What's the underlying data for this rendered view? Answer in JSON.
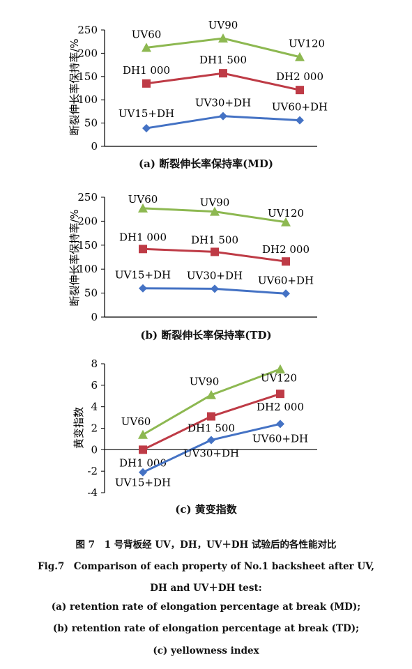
{
  "charts": [
    {
      "panel": "a",
      "caption": "(a) 断裂伸长率保持率(MD)",
      "ylabel": "断裂伸长率保持率/%",
      "ylim": [
        0,
        250
      ],
      "yticks": [
        0,
        50,
        100,
        150,
        200,
        250
      ],
      "x": [
        1,
        2,
        3
      ],
      "series": [
        {
          "labels": [
            "UV60",
            "UV90",
            "UV120"
          ],
          "values": [
            212,
            232,
            192
          ],
          "color": "#8db851",
          "marker": "triangle"
        },
        {
          "labels": [
            "DH1 000",
            "DH1 500",
            "DH2 000"
          ],
          "values": [
            135,
            157,
            121
          ],
          "color": "#be3b46",
          "marker": "square"
        },
        {
          "labels": [
            "UV15+DH",
            "UV30+DH",
            "UV60+DH"
          ],
          "values": [
            39,
            65,
            56
          ],
          "color": "#4472c4",
          "marker": "diamond"
        }
      ]
    },
    {
      "panel": "b",
      "caption": "(b) 断裂伸长率保持率(TD)",
      "ylabel": "断裂伸长率保持率/%",
      "ylim": [
        0,
        250
      ],
      "yticks": [
        0,
        50,
        100,
        150,
        200,
        250
      ],
      "x": [
        1,
        2,
        3
      ],
      "series": [
        {
          "labels": [
            "UV60",
            "UV90",
            "UV120"
          ],
          "values": [
            227,
            220,
            198
          ],
          "color": "#8db851",
          "marker": "triangle"
        },
        {
          "labels": [
            "DH1 000",
            "DH1 500",
            "DH2 000"
          ],
          "values": [
            142,
            136,
            116
          ],
          "color": "#be3b46",
          "marker": "square"
        },
        {
          "labels": [
            "UV15+DH",
            "UV30+DH",
            "UV60+DH"
          ],
          "values": [
            60,
            59,
            49
          ],
          "color": "#4472c4",
          "marker": "diamond"
        }
      ]
    },
    {
      "panel": "c",
      "caption": "(c) 黄变指数",
      "ylabel": "黄变指数",
      "ylim": [
        -4,
        8
      ],
      "yticks": [
        -4,
        -2,
        0,
        2,
        4,
        6,
        8
      ],
      "x": [
        1,
        2,
        3
      ],
      "series": [
        {
          "labels": [
            "UV60",
            "UV90",
            "UV120"
          ],
          "values": [
            1.4,
            5.1,
            7.5
          ],
          "color": "#8db851",
          "marker": "triangle"
        },
        {
          "labels": [
            "DH1 000",
            "DH1 500",
            "DH2 000"
          ],
          "values": [
            0.0,
            3.1,
            5.2
          ],
          "color": "#be3b46",
          "marker": "square"
        },
        {
          "labels": [
            "UV15+DH",
            "UV30+DH",
            "UV60+DH"
          ],
          "values": [
            -2.1,
            0.9,
            2.4
          ],
          "color": "#4472c4",
          "marker": "diamond"
        }
      ]
    }
  ],
  "figure_caption": {
    "cn": "图 7　1 号背板经 UV，DH，UV＋DH 试验后的各性能对比",
    "en1": "Fig.7　Comparison of each property of No.1 backsheet after UV,",
    "en2": "DH and UV＋DH test:",
    "en3": "(a) retention rate of elongation percentage at break (MD);",
    "en4": "(b) retention rate of elongation percentage at break (TD);",
    "en5": "(c) yellowness index"
  },
  "chart_data": [
    {
      "type": "line",
      "title": "(a) 断裂伸长率保持率(MD)",
      "xlabel": "",
      "ylabel": "断裂伸长率保持率/%",
      "ylim": [
        0,
        250
      ],
      "legend": "none",
      "series": [
        {
          "point_labels": [
            "UV60",
            "UV90",
            "UV120"
          ],
          "values": [
            212,
            232,
            192
          ]
        },
        {
          "point_labels": [
            "DH1 000",
            "DH1 500",
            "DH2 000"
          ],
          "values": [
            135,
            157,
            121
          ]
        },
        {
          "point_labels": [
            "UV15+DH",
            "UV30+DH",
            "UV60+DH"
          ],
          "values": [
            39,
            65,
            56
          ]
        }
      ]
    },
    {
      "type": "line",
      "title": "(b) 断裂伸长率保持率(TD)",
      "xlabel": "",
      "ylabel": "断裂伸长率保持率/%",
      "ylim": [
        0,
        250
      ],
      "legend": "none",
      "series": [
        {
          "point_labels": [
            "UV60",
            "UV90",
            "UV120"
          ],
          "values": [
            227,
            220,
            198
          ]
        },
        {
          "point_labels": [
            "DH1 000",
            "DH1 500",
            "DH2 000"
          ],
          "values": [
            142,
            136,
            116
          ]
        },
        {
          "point_labels": [
            "UV15+DH",
            "UV30+DH",
            "UV60+DH"
          ],
          "values": [
            60,
            59,
            49
          ]
        }
      ]
    },
    {
      "type": "line",
      "title": "(c) 黄变指数",
      "xlabel": "",
      "ylabel": "黄变指数",
      "ylim": [
        -4,
        8
      ],
      "legend": "none",
      "series": [
        {
          "point_labels": [
            "UV60",
            "UV90",
            "UV120"
          ],
          "values": [
            1.4,
            5.1,
            7.5
          ]
        },
        {
          "point_labels": [
            "DH1 000",
            "DH1 500",
            "DH2 000"
          ],
          "values": [
            0.0,
            3.1,
            5.2
          ]
        },
        {
          "point_labels": [
            "UV15+DH",
            "UV30+DH",
            "UV60+DH"
          ],
          "values": [
            -2.1,
            0.9,
            2.4
          ]
        }
      ]
    }
  ]
}
